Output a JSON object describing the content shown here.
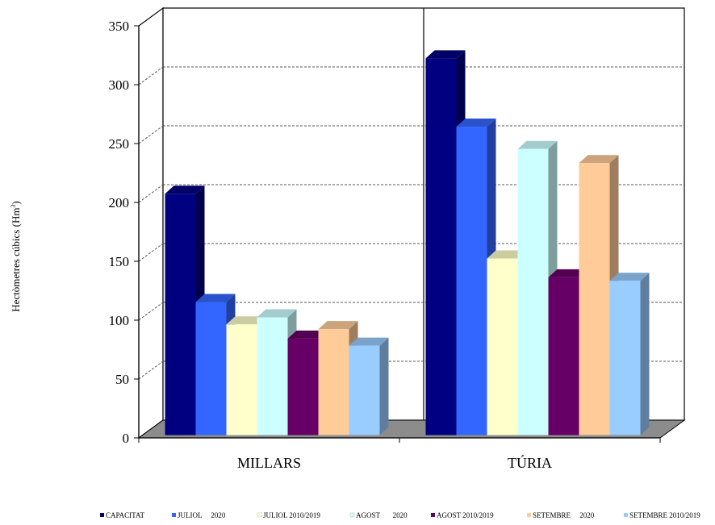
{
  "chart_data": {
    "type": "bar",
    "style": "3d-clustered",
    "categories": [
      "MILLARS",
      "TÚRIA"
    ],
    "ylabel": "Hectòmetres cúbics (Hm",
    "ylabel_sup": "3",
    "ylabel_end": ")",
    "ylim": [
      0,
      350
    ],
    "yticks": [
      0,
      50,
      100,
      150,
      200,
      250,
      300,
      350
    ],
    "grid": "dashed horizontal",
    "legend_position": "bottom",
    "series": [
      {
        "name": "CAPACITAT",
        "values": [
          205,
          320
        ],
        "color": "#000080"
      },
      {
        "name": "JULIOL     2020",
        "values": [
          113,
          262
        ],
        "color": "#3366FF"
      },
      {
        "name": "JULIOL 2010/2019",
        "values": [
          94,
          150
        ],
        "color": "#FFFFCC"
      },
      {
        "name": "AGOST       2020",
        "values": [
          100,
          243
        ],
        "color": "#CCFFFF"
      },
      {
        "name": "AGOST 2010/2019",
        "values": [
          82,
          134
        ],
        "color": "#660066"
      },
      {
        "name": "SETEMBRE     2020",
        "values": [
          90,
          231
        ],
        "color": "#FFCC99"
      },
      {
        "name": "SETEMBRE 2010/2019",
        "values": [
          76,
          131
        ],
        "color": "#99CCFF"
      }
    ]
  }
}
